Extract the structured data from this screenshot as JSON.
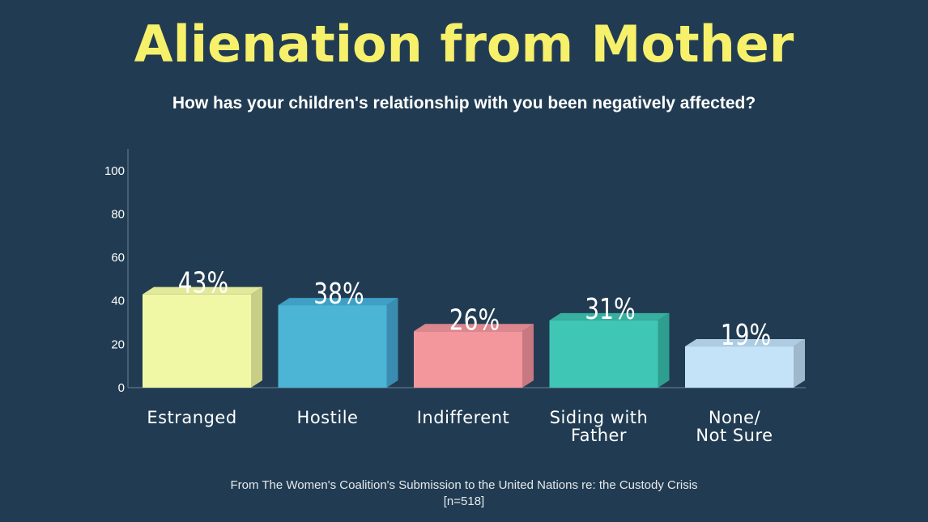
{
  "title": "Alienation from Mother",
  "subtitle": "How has your children's relationship with you been negatively affected?",
  "source": {
    "line1": "From The Women's Coalition's Submission to the United Nations re: the Custody Crisis",
    "line2": "[n=518]"
  },
  "colors": {
    "background": "#213c52",
    "title": "#f6f06b",
    "text": "#ffffff"
  },
  "chart_data": {
    "type": "bar",
    "title": "Alienation from Mother",
    "subtitle": "How has your children's relationship with you been negatively affected?",
    "categories": [
      [
        "Estranged"
      ],
      [
        "Hostile"
      ],
      [
        "Indifferent"
      ],
      [
        "Siding with",
        "Father"
      ],
      [
        "None/",
        "Not Sure"
      ]
    ],
    "values": [
      43,
      38,
      26,
      31,
      19
    ],
    "value_labels": [
      "43%",
      "38%",
      "26%",
      "31%",
      "19%"
    ],
    "colors": [
      "#f1f8a5",
      "#4cb5d6",
      "#f3979d",
      "#40c6b5",
      "#c4e3f8"
    ],
    "side_colors": [
      "#c9ce86",
      "#3a8db0",
      "#c87880",
      "#2e9e90",
      "#9fb8cc"
    ],
    "top_colors": [
      "#e2e99a",
      "#3f9fc4",
      "#dc868d",
      "#37b09f",
      "#adcbe1"
    ],
    "ylim": [
      0,
      110
    ],
    "yticks": [
      0,
      20,
      40,
      60,
      80,
      100
    ],
    "grid": false,
    "legend": "none"
  }
}
